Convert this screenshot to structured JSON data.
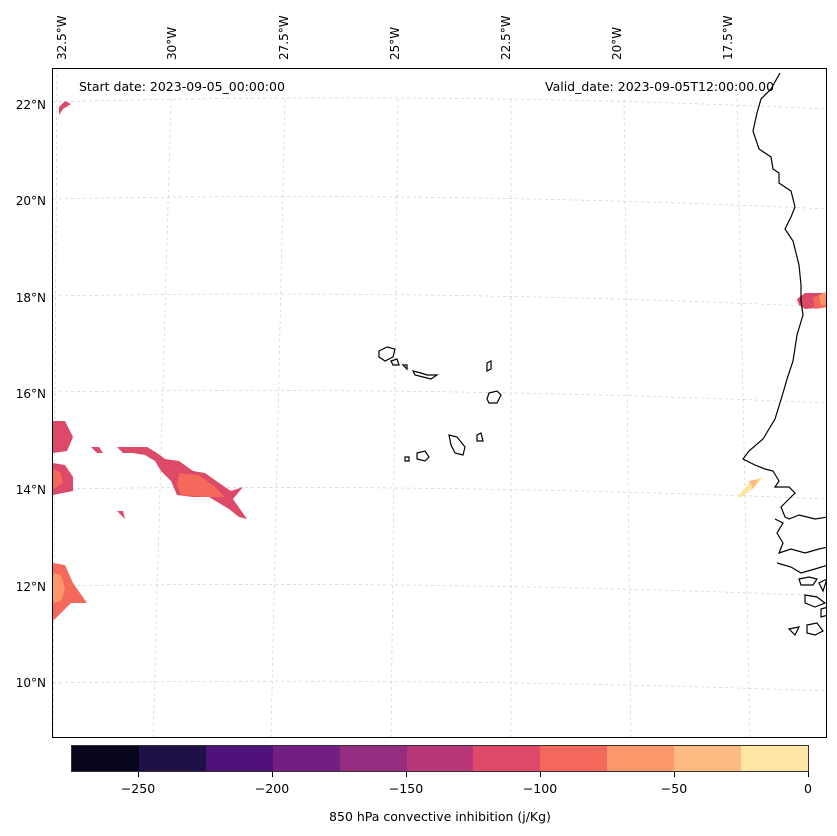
{
  "map": {
    "start_date": "Start date: 2023-09-05_00:00:00",
    "valid_date": "Valid_date: 2023-09-05T12:00:00.00",
    "lon_labels": [
      "32.5°W",
      "30°W",
      "27.5°W",
      "25°W",
      "22.5°W",
      "20°W",
      "17.5°W"
    ],
    "lat_labels": [
      "22°N",
      "20°N",
      "18°N",
      "16°N",
      "14°N",
      "12°N",
      "10°N"
    ],
    "gridlines": "dashed light gray",
    "coastline_color": "#000000",
    "regions_shown": [
      "Cape Verde islands",
      "West African coast"
    ]
  },
  "colorbar": {
    "title": "850 hPa convective inhibition (j/Kg)",
    "tick_labels": [
      "−250",
      "−200",
      "−150",
      "−100",
      "−50",
      "0"
    ],
    "colormap": "magma",
    "range": [
      -275,
      0
    ],
    "colors": [
      "#07061c",
      "#1f1147",
      "#4f127b",
      "#721f81",
      "#952c80",
      "#b73779",
      "#dd4968",
      "#f4695c",
      "#fd9668",
      "#febb81",
      "#fde6a4"
    ]
  }
}
